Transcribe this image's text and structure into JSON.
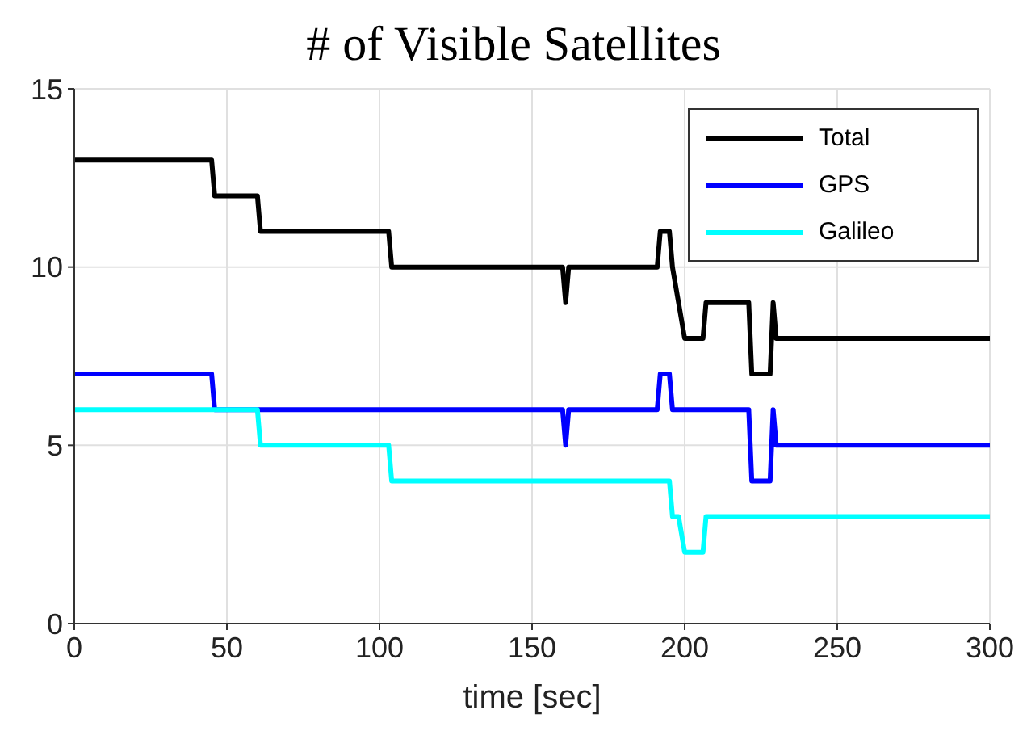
{
  "chart_data": {
    "type": "line",
    "title": "# of Visible Satellites",
    "xlabel": "time [sec]",
    "xlim": [
      0,
      300
    ],
    "xticks": [
      0,
      50,
      100,
      150,
      200,
      250,
      300
    ],
    "ylim": [
      0,
      15
    ],
    "yticks": [
      0,
      5,
      10,
      15
    ],
    "grid": true,
    "legend": "top right",
    "marker": "none",
    "line_style": "solid",
    "series": [
      {
        "name": "Total",
        "color": "#000000",
        "x": [
          0,
          45,
          46,
          60,
          61,
          103,
          104,
          160,
          161,
          162,
          191,
          192,
          195,
          196,
          198,
          200,
          206,
          207,
          221,
          222,
          228,
          229,
          230,
          300
        ],
        "values": [
          13,
          13,
          12,
          12,
          11,
          11,
          10,
          10,
          9,
          10,
          10,
          11,
          11,
          10,
          9,
          8,
          8,
          9,
          9,
          7,
          7,
          9,
          8,
          8
        ]
      },
      {
        "name": "GPS",
        "color": "#0000ff",
        "x": [
          0,
          45,
          46,
          160,
          161,
          162,
          191,
          192,
          195,
          196,
          221,
          222,
          228,
          229,
          230,
          300
        ],
        "values": [
          7,
          7,
          6,
          6,
          5,
          6,
          6,
          7,
          7,
          6,
          6,
          4,
          4,
          6,
          5,
          5
        ]
      },
      {
        "name": "Galileo",
        "color": "#00ffff",
        "x": [
          0,
          60,
          61,
          103,
          104,
          195,
          196,
          198,
          200,
          206,
          207,
          300
        ],
        "values": [
          6,
          6,
          5,
          5,
          4,
          4,
          3,
          3,
          2,
          2,
          3,
          3
        ]
      }
    ]
  }
}
